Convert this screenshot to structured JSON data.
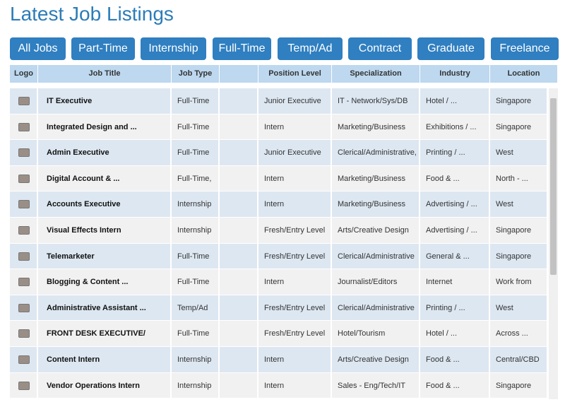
{
  "title": "Latest Job Listings",
  "tabs": [
    "All Jobs",
    "Part-Time",
    "Internship",
    "Full-Time",
    "Temp/Ad",
    "Contract",
    "Graduate",
    "Freelance"
  ],
  "table": {
    "headers": [
      "Logo",
      "Job Title",
      "Job Type",
      "Position Level",
      "Specialization",
      "Industry",
      "Location"
    ],
    "rows": [
      [
        "IT Executive",
        "Full-Time",
        "Junior Executive",
        "IT - Network/Sys/DB",
        "Hotel / ...",
        "Singapore"
      ],
      [
        "Integrated Design and ...",
        "Full-Time",
        "Intern",
        "Marketing/Business",
        "Exhibitions / ...",
        "Singapore"
      ],
      [
        "Admin Executive",
        "Full-Time",
        "Junior Executive",
        "Clerical/Administrative,",
        "Printing / ...",
        "West"
      ],
      [
        "Digital Account & ...",
        "Full-Time,",
        "Intern",
        "Marketing/Business",
        "Food & ...",
        "North - ..."
      ],
      [
        "Accounts Executive",
        "Internship",
        "Intern",
        "Marketing/Business",
        "Advertising / ...",
        "West"
      ],
      [
        "Visual Effects Intern",
        "Internship",
        "Fresh/Entry Level",
        "Arts/Creative Design",
        "Advertising / ...",
        "Singapore"
      ],
      [
        "Telemarketer",
        "Full-Time",
        "Fresh/Entry Level",
        "Clerical/Administrative",
        "General & ...",
        "Singapore"
      ],
      [
        "Blogging & Content ...",
        "Full-Time",
        "Intern",
        "Journalist/Editors",
        "Internet",
        "Work from"
      ],
      [
        "Administrative Assistant ...",
        "Temp/Ad",
        "Fresh/Entry Level",
        "Clerical/Administrative",
        "Printing / ...",
        "West"
      ],
      [
        "FRONT DESK EXECUTIVE/",
        "Full-Time",
        "Fresh/Entry Level",
        "Hotel/Tourism",
        "Hotel / ...",
        "Across ..."
      ],
      [
        "Content Intern",
        "Internship",
        "Intern",
        "Arts/Creative Design",
        "Food & ...",
        "Central/CBD"
      ],
      [
        "Vendor Operations Intern",
        "Internship",
        "Intern",
        "Sales - Eng/Tech/IT",
        "Food & ...",
        "Singapore"
      ]
    ]
  }
}
